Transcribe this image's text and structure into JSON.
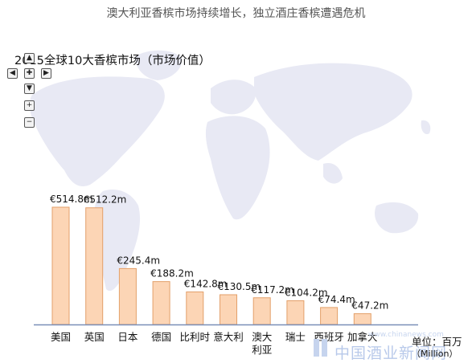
{
  "headline": "澳大利亚香槟市场持续增长，独立酒庄香槟遭遇危机",
  "chart_data": {
    "type": "bar",
    "title": "2015全球10大香槟市场（市场价值）",
    "categories": [
      "美国",
      "英国",
      "日本",
      "德国",
      "比利时",
      "意大利",
      "澳大利亚",
      "瑞士",
      "西班牙",
      "加拿大"
    ],
    "values": [
      514.8,
      512.2,
      245.4,
      188.2,
      142.8,
      130.5,
      117.2,
      104.2,
      74.4,
      47.2
    ],
    "data_labels": [
      "€514.8m",
      "€512.2m",
      "€245.4m",
      "€188.2m",
      "€142.8m",
      "€130.5m",
      "€117.2m",
      "€104.2m",
      "€74.4m",
      "€47.2m"
    ],
    "unit_label": "单位：百万",
    "unit_sub": "（Million）",
    "bar_color": "#fcd5b5",
    "bar_stroke": "#e3a06a",
    "grid": false,
    "legend": "none"
  },
  "nav": {
    "controls": [
      "arrow-up",
      "arrow-left",
      "home",
      "arrow-right",
      "arrow-down",
      "zoom-in",
      "zoom-out"
    ]
  },
  "watermark": {
    "text": "中国酒业新闻网",
    "url": "www.chinanews.com"
  }
}
